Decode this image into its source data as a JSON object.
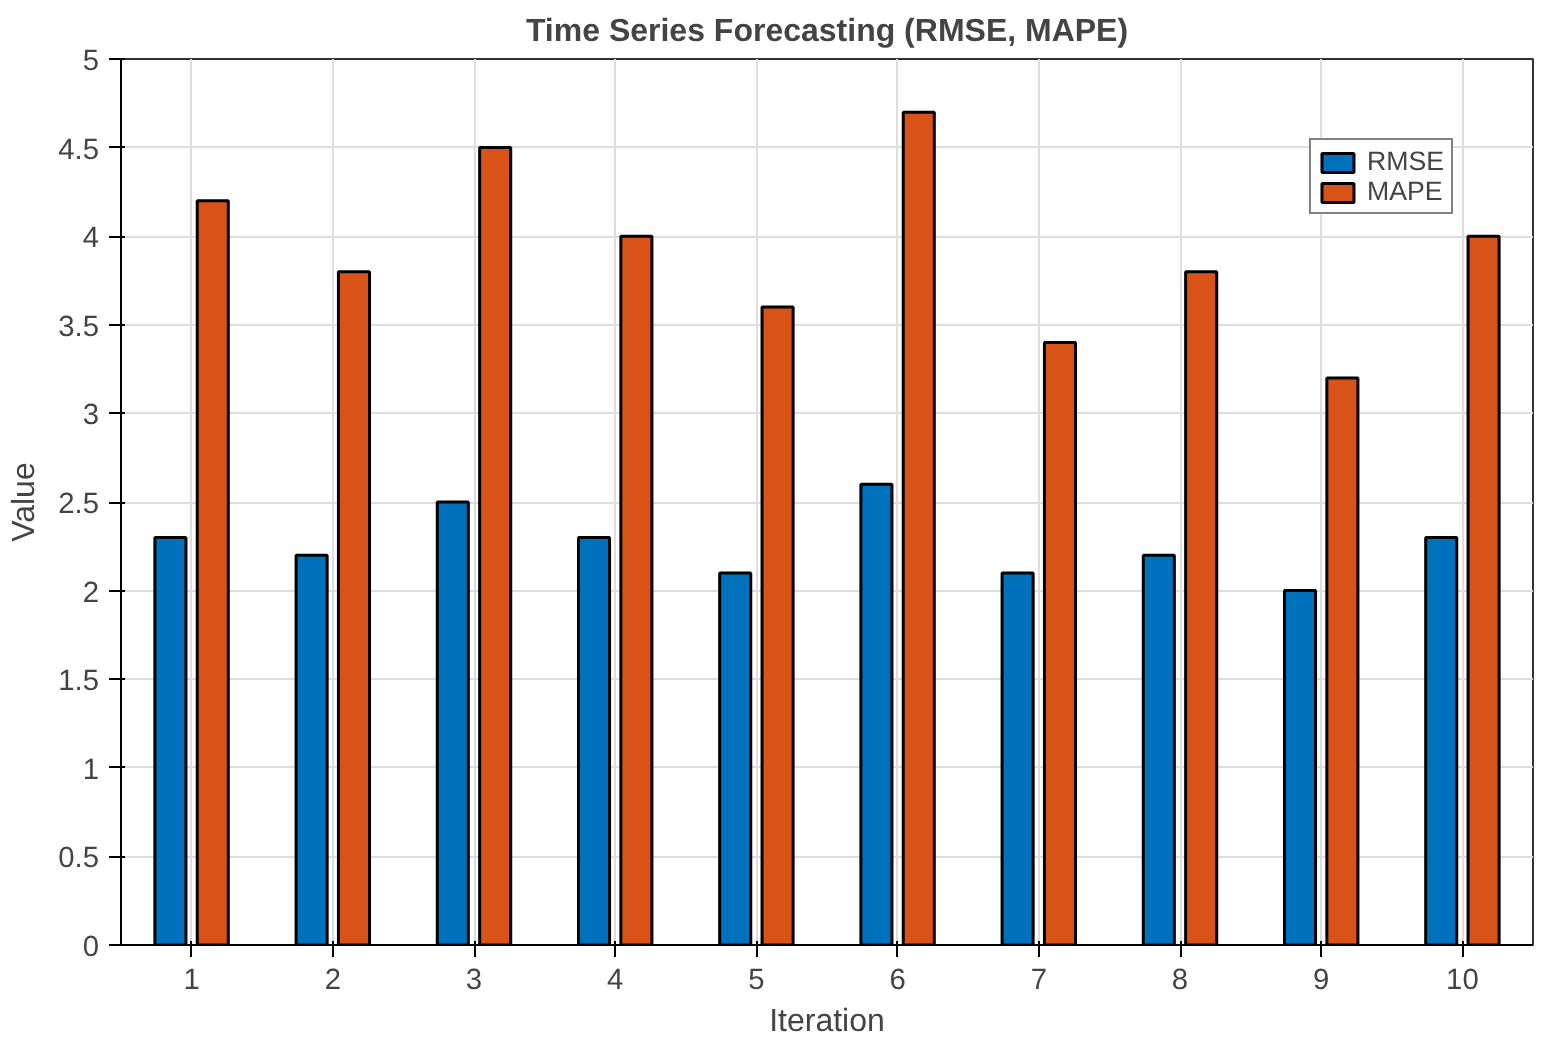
{
  "chart_data": {
    "type": "bar",
    "title": "Time Series Forecasting (RMSE, MAPE)",
    "xlabel": "Iteration",
    "ylabel": "Value",
    "categories": [
      "1",
      "2",
      "3",
      "4",
      "5",
      "6",
      "7",
      "8",
      "9",
      "10"
    ],
    "series": [
      {
        "name": "RMSE",
        "color": "#0072bd",
        "values": [
          2.3,
          2.2,
          2.5,
          2.3,
          2.1,
          2.6,
          2.1,
          2.2,
          2.0,
          2.3
        ]
      },
      {
        "name": "MAPE",
        "color": "#d95319",
        "values": [
          4.2,
          3.8,
          4.5,
          4.0,
          3.6,
          4.7,
          3.4,
          3.8,
          3.2,
          4.0
        ]
      }
    ],
    "ylim": [
      0,
      5
    ],
    "yticks": [
      0,
      0.5,
      1,
      1.5,
      2,
      2.5,
      3,
      3.5,
      4,
      4.5,
      5
    ],
    "grid": true,
    "legend": "top right"
  }
}
